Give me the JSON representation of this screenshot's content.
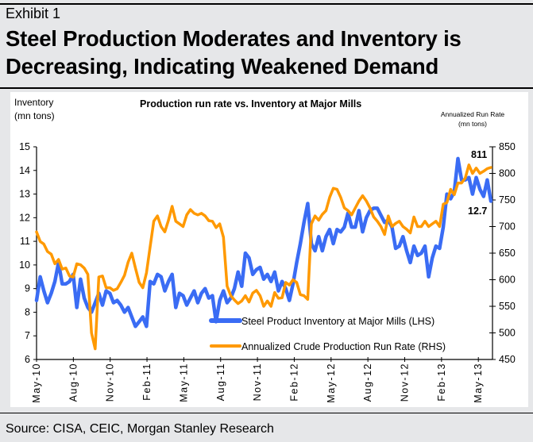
{
  "header": {
    "exhibit": "Exhibit 1",
    "headline_line1": "Steel Production Moderates and Inventory is",
    "headline_line2": "Decreasing, Indicating Weakened Demand"
  },
  "footer": {
    "source": "Source: CISA, CEIC, Morgan Stanley Research"
  },
  "chart_data": {
    "type": "line",
    "title": "Production run rate vs.  Inventory at Major Mills",
    "ylabel_left_line1": "Inventory",
    "ylabel_left_line2": "(mn tons)",
    "ylabel_right_line1": "Annualized Run Rate",
    "ylabel_right_line2": "(mn tons)",
    "ylim_left": [
      6,
      15
    ],
    "ylim_right": [
      450,
      850
    ],
    "yticks_left": [
      "15",
      "14",
      "13",
      "12",
      "11",
      "10",
      "9",
      "8",
      "7",
      "6"
    ],
    "yticks_right": [
      "850",
      "800",
      "750",
      "700",
      "650",
      "600",
      "550",
      "500",
      "450"
    ],
    "xticks": [
      "May-10",
      "Aug-10",
      "Nov-10",
      "Feb-11",
      "May-11",
      "Aug-11",
      "Nov-11",
      "Feb-12",
      "May-12",
      "Aug-12",
      "Nov-12",
      "Feb-13",
      "May-13"
    ],
    "x_start": "May-10",
    "x_points_per_month": 3,
    "grid": false,
    "legend_position": "bottom-center",
    "series": [
      {
        "name": "Steel Product Inventory at Major Mills (LHS)",
        "axis": "left",
        "color": "#3a6cf4",
        "values": [
          8.5,
          9.5,
          8.9,
          8.4,
          8.8,
          9.3,
          10.1,
          9.2,
          9.2,
          9.3,
          9.6,
          8.2,
          9.4,
          8.6,
          8.2,
          8.0,
          8.4,
          8.8,
          8.3,
          8.9,
          8.8,
          8.4,
          8.5,
          8.3,
          8.0,
          8.2,
          7.8,
          7.4,
          7.6,
          7.8,
          7.4,
          9.3,
          9.2,
          9.6,
          9.5,
          8.9,
          9.3,
          9.6,
          8.2,
          8.8,
          8.7,
          8.3,
          8.6,
          8.9,
          8.4,
          8.8,
          9.0,
          8.6,
          8.7,
          7.6,
          8.5,
          8.9,
          8.4,
          8.6,
          9.0,
          9.7,
          9.1,
          10.5,
          10.3,
          9.6,
          9.8,
          9.9,
          9.4,
          9.6,
          9.3,
          9.7,
          8.9,
          9.3,
          9.0,
          8.5,
          9.2,
          10.1,
          10.9,
          11.8,
          12.6,
          10.9,
          10.6,
          11.2,
          10.6,
          11.2,
          11.5,
          10.9,
          11.5,
          11.4,
          11.6,
          12.2,
          11.6,
          11.6,
          12.3,
          11.4,
          12.0,
          12.3,
          12.4,
          12.4,
          12.1,
          11.8,
          11.9,
          11.6,
          10.7,
          10.8,
          11.2,
          10.6,
          10.1,
          10.8,
          10.4,
          10.5,
          10.8,
          9.5,
          10.3,
          10.8,
          10.7,
          11.6,
          13.0,
          12.8,
          13.1,
          14.5,
          13.6,
          13.6,
          13.7,
          13.0,
          13.7,
          13.2,
          12.9,
          13.6,
          12.7
        ]
      },
      {
        "name": "Annualized Crude Production Run Rate (RHS)",
        "axis": "right",
        "color": "#ff9900",
        "values": [
          690,
          672,
          667,
          653,
          648,
          630,
          638,
          620,
          622,
          607,
          605,
          630,
          628,
          622,
          610,
          500,
          470,
          605,
          607,
          585,
          585,
          580,
          583,
          595,
          608,
          633,
          650,
          622,
          595,
          585,
          613,
          662,
          710,
          720,
          700,
          690,
          712,
          738,
          710,
          705,
          700,
          722,
          732,
          725,
          722,
          725,
          720,
          711,
          710,
          698,
          705,
          680,
          588,
          570,
          562,
          555,
          560,
          570,
          558,
          575,
          580,
          570,
          550,
          560,
          550,
          576,
          565,
          566,
          595,
          590,
          600,
          595,
          572,
          570,
          563,
          705,
          720,
          712,
          723,
          730,
          755,
          772,
          770,
          755,
          735,
          730,
          722,
          735,
          748,
          758,
          748,
          735,
          718,
          710,
          700,
          685,
          720,
          700,
          706,
          710,
          700,
          695,
          688,
          718,
          700,
          700,
          710,
          700,
          705,
          710,
          700,
          742,
          745,
          770,
          760,
          782,
          782,
          791,
          816,
          800,
          810,
          800,
          804,
          809,
          811
        ]
      }
    ],
    "annotations": [
      {
        "text": "811",
        "series": "Annualized Crude Production Run Rate (RHS)"
      },
      {
        "text": "12.7",
        "series": "Steel Product Inventory at Major Mills (LHS)"
      }
    ]
  }
}
